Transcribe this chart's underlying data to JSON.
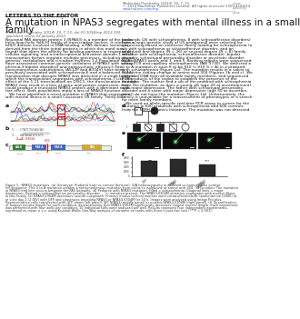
{
  "title_line1": "A mutation in NPAS3 segregates with mental illness in a small",
  "title_line2": "family",
  "letters_label": "LETTERS TO THE EDITOR",
  "journal_line1": "Molecular Psychiatry (2014) 19, 7–13; doi:10.1038/mp.2012.192;",
  "journal_line2": "published online 22 January 2013",
  "header_line1": "Molecular Psychiatry (2014) 19, 7–13",
  "header_line2": "© 2014 Macmillan Publishers Limited  All rights reserved 1359-4184/14",
  "header_line3": "www.nature.com/mp",
  "body_left": [
    "Neuronal PAS domain protein 3 (NPAS3) is a member of the basic",
    "helix-loop-helix (bHLH) family of transcription factors. It contains a",
    "bHLH domain involved in DNA binding, a PAS domain (acronym",
    "derived from the three initial proteins in which this motif was",
    "found) that alters the affinity for binding-partners in response to",
    "cellular signaling, and a transcriptional activation domain.1 bHLH",
    "transcription factors regulate multiple processes, including neuro-",
    "genesis, metabolism and circadian rhythms.1,2 Population studies",
    "have associated common genetic variations of NPAS3 with schizo-",
    "phrenia,3 bipolar disorder4 and antipsychotic efficacy.5 Two",
    "nonsynonymous substitutions (A512P and A704V) have been",
    "previously associated with schizophrenia,6 and a balanced (9;14)",
    "translocation that disrupts NPAS3 was detected in a small family in",
    "which the translocation segregates with schizophrenia.7 Like the",
    "effect of the 1;11 translocation on DISC1, the translocation through",
    "NPAS3 may result in a loss of gene and protein expression, or it",
    "could produce a truncated NPAS3 protein with a dominant nega-",
    "tive effect. Both possibilities imply a loss of NPAS3 function.",
    "   We have identified a novel mutation in NPAS3 that segregates",
    "with mental illness in a small Caucasian US family. Thirty-four"
  ],
  "body_right": [
    "probands (26 with schizophrenia, 8 with schizoaffective disorders)",
    "from a large genetic study of US pedigrees8 were selected for",
    "sequencing based on extensive family loading for schizophrenia (a",
    "sib with schizophrenia or schizoaffective disorder, and an",
    "additional first degree (N = 26) or second degree (N = 8) family",
    "member with schizophrenia, schizoaffective disorder, bipolar",
    "disorder, schizotypal personality disorder or psychotic disorder",
    "NOS). NPAS3 exons and 3′ and 5′ flanking regions were sequenced",
    "using PCR and capillary electrophoresis (ABI 3730). We detected a",
    "G to A mutation in exon 8 at bp 910 (c.910 G > A) in a proband",
    "with schizophrenia (Figure 1a). The mutation results in a valine to",
    "isoleucine coding change at amino acid 304 (Figures 1b and c). We",
    "obtained DNA from all available family members, and sequenced",
    "PCR products of the region to establish the presence of the",
    "mutation. The mother and a sib of the proband with schizophrenia",
    "have the mutation, as does a young sib (age 20 at ascertainment)",
    "with major depression. The father with schizotypal personality",
    "disorder and a sister with major depression (age 30 at ascertain-",
    "ment) do not have the mutation (Figure 1d). Unfortunately, the",
    "family is unavailable for a reassessment of phenotypes or a search",
    "for more family members."
  ],
  "body_right2": [
    "   We used an allele-specific real-time PCR assay to screen for the",
    "mutation in 600 probands with schizophrenia and 600 controls",
    "from the NIMH Genetics Initiative. The mutation was not detected"
  ],
  "bar_values": [
    3500,
    3800,
    2600
  ],
  "bar_colors": [
    "#2a2a2a",
    "#2a2a2a",
    "#2a2a2a"
  ],
  "bar_error": [
    200,
    180,
    150
  ],
  "bar_labels": [
    "GFP",
    "NPAS3",
    "NPAS3"
  ],
  "bar_labels2": [
    "",
    "WT",
    "V304M"
  ],
  "significance": "***",
  "caption_lines": [
    "Figure 1.  NPAS3 mutations. (a) Genotype: Proband (top) vs control (bottom). G/A heterozygosity in proband vs homozygous control.",
    "(b) Sequence. The G to A mutation creates a nonsynonymous mutation from valine to isoleucine at amino acid 304. (c) Location. The mutation",
    "in NPAS3 (red line) occurs between the PAS domains. (d) Pedigree with NPAS3 mutation. Filled = schizophrenia. Diagonal lines = major",
    "depression. Dashed = schizoaffective personality disorder. - - = mutation present. The NPAS3-V304M mutation segregates with mental illness",
    "in this family. (e) NPAS3-V304M decreases neurite outgrowth. Primary mouse cortical neurons were cotransfected with lipofectamine (2000) at",
    "in vitro day 2 (2 DIV) with GFP and constructs encoding NPAS3 or NPAS3-V304M for 24 h. Images were analyzed using Image Pro plus.",
    "Representative cells transfected with GFP alone (left panel), WT NPAS3 (middle panel) or mutant NPAS3-V304M (right panel). (f) Quantification",
    "of longest neurite length for each condition, demonstrating that NPAS3-V304M significantly decreases longest neurite length. Each experiment",
    "was performed with four wells per condition, 10 individual cells were analyzed per well. Results represent four independent experiments,",
    "expressed as mean ± s.e. using Kruskal–Wallis One-Way analysis of variance on ranks with Dunn’s post-hoc test (***P < 0.001)."
  ],
  "background_color": "#ffffff"
}
